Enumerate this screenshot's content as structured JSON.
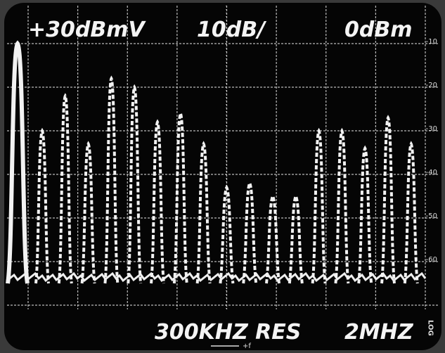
{
  "screen": {
    "top_left": "+30dBmV",
    "top_center": "10dB/",
    "top_right": "0dBm",
    "bottom_center": "300KHZ RES",
    "bottom_right": "2MHZ",
    "mode": "LOG",
    "arrow_label": "+f",
    "scale_labels": [
      "-10",
      "-20",
      "-30",
      "-40",
      "-50",
      "-60"
    ],
    "peaks": {
      "values": [
        -10,
        -30,
        -22,
        -33,
        -18,
        -20,
        -28,
        -26,
        -33,
        -43,
        -42,
        -45,
        -45,
        -30,
        -30,
        -34,
        -27,
        -33
      ]
    }
  }
}
